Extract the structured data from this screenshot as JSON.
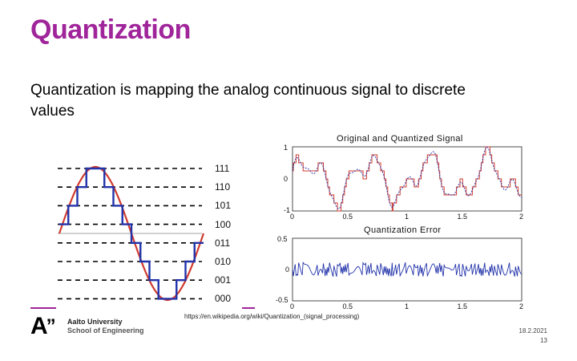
{
  "slide": {
    "title": "Quantization",
    "body": "Quantization is mapping the analog continuous signal to discrete values"
  },
  "left_figure": {
    "codes": [
      "111",
      "110",
      "101",
      "100",
      "011",
      "010",
      "001",
      "000"
    ],
    "colors": {
      "signal": "#d03a2e",
      "quantized": "#2233aa",
      "levels": "#000000"
    }
  },
  "right_figure": {
    "top_plot": {
      "title": "Original and Quantized Signal",
      "yticks": [
        "1",
        "0",
        "-1"
      ],
      "xticks": [
        "0",
        "0.5",
        "1",
        "1.5",
        "2"
      ]
    },
    "bottom_plot": {
      "title": "Quantization Error",
      "yticks": [
        "0.5",
        "0",
        "-0.5"
      ],
      "xticks": [
        "0",
        "0.5",
        "1",
        "1.5",
        "2"
      ]
    },
    "colors": {
      "original": "#2233aa",
      "quantized": "#d03a2e",
      "error": "#2233aa"
    }
  },
  "source": {
    "url": "https://en.wikipedia.org/wiki/Quantization_(signal_processing)"
  },
  "footer": {
    "logo_mark": "A",
    "logo_quote": "”",
    "university": "Aalto University",
    "school": "School of Engineering",
    "date": "18.2.2021",
    "page": "13"
  }
}
